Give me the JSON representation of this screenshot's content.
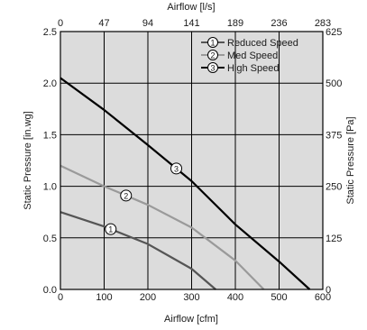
{
  "chart_data": {
    "type": "line",
    "xlabel_bottom": "Airflow [cfm]",
    "xlabel_top": "Airflow [l/s]",
    "ylabel_left": "Static Pressure [in.wg]",
    "ylabel_right": "Static Pressure [Pa]",
    "xlim": [
      0,
      600
    ],
    "ylim": [
      0,
      2.5
    ],
    "x_ticks_bottom": [
      0,
      100,
      200,
      300,
      400,
      500,
      600
    ],
    "x_ticks_top": [
      "0",
      "47",
      "94",
      "141",
      "189",
      "236",
      "283"
    ],
    "y_ticks_left": [
      "0.0",
      "0.5",
      "1.0",
      "1.5",
      "2.0",
      "2.5"
    ],
    "y_ticks_right": [
      "0",
      "125",
      "250",
      "375",
      "500",
      "625"
    ],
    "grid": true,
    "legend_position": "top-right",
    "background_color": "#dcdcdc",
    "series": [
      {
        "name": "Reduced Speed",
        "marker": "1",
        "color": "#555555",
        "x": [
          0,
          100,
          200,
          250,
          300,
          355
        ],
        "y": [
          0.75,
          0.61,
          0.44,
          0.32,
          0.2,
          0.0
        ]
      },
      {
        "name": "Med Speed",
        "marker": "2",
        "color": "#9a9a9a",
        "x": [
          0,
          100,
          200,
          300,
          400,
          465
        ],
        "y": [
          1.2,
          1.0,
          0.82,
          0.6,
          0.28,
          0.0
        ]
      },
      {
        "name": "High Speed",
        "marker": "3",
        "color": "#000000",
        "x": [
          0,
          100,
          200,
          300,
          400,
          500,
          570
        ],
        "y": [
          2.05,
          1.74,
          1.4,
          1.05,
          0.63,
          0.27,
          0.0
        ]
      }
    ]
  }
}
